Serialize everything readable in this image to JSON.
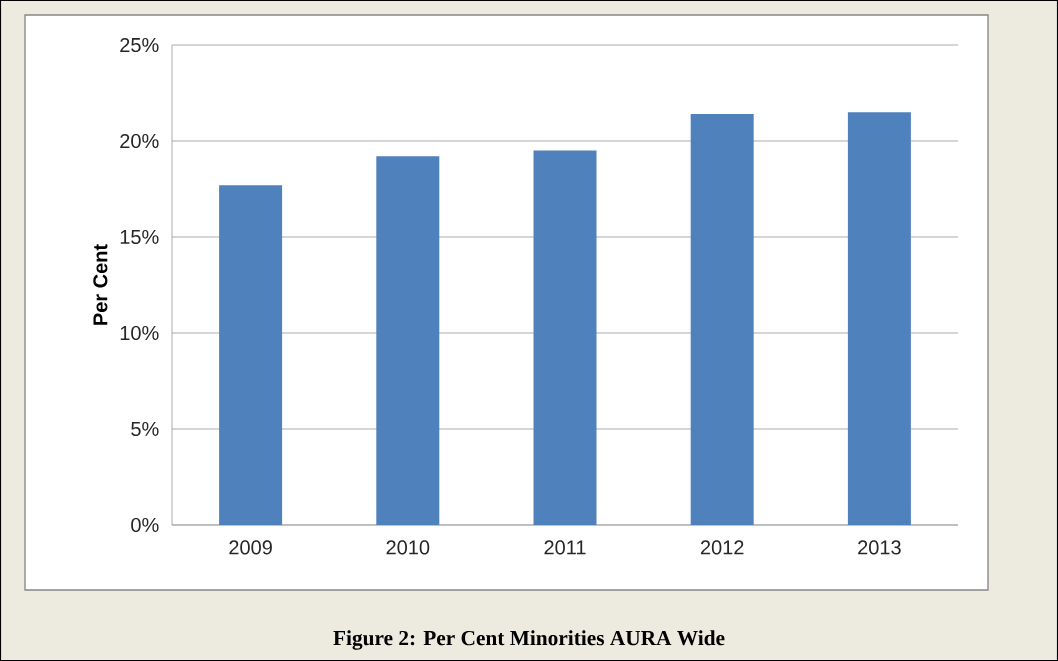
{
  "chart_data": {
    "type": "bar",
    "title": "Figure 2: Per Cent Minorities AURA Wide",
    "ylabel": "Per Cent",
    "categories": [
      "2009",
      "2010",
      "2011",
      "2012",
      "2013"
    ],
    "values": [
      17.7,
      19.2,
      19.5,
      21.4,
      21.5
    ],
    "color": "#4f81bd",
    "ylim": [
      0,
      25
    ],
    "yticks": [
      {
        "value": 0,
        "label": "0%"
      },
      {
        "value": 5,
        "label": "5%"
      },
      {
        "value": 10,
        "label": "10%"
      },
      {
        "value": 15,
        "label": "15%"
      },
      {
        "value": 20,
        "label": "20%"
      },
      {
        "value": 25,
        "label": "25%"
      }
    ],
    "grid": "y"
  }
}
